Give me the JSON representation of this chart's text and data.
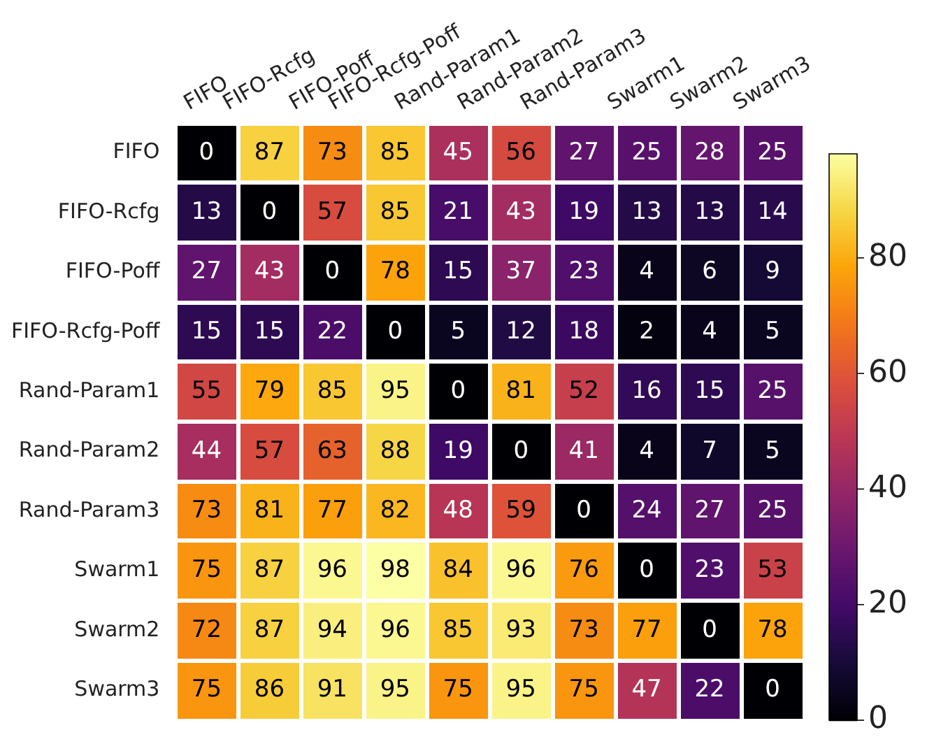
{
  "chart_data": {
    "type": "heatmap",
    "categories": [
      "FIFO",
      "FIFO-Rcfg",
      "FIFO-Poff",
      "FIFO-Rcfg-Poff",
      "Rand-Param1",
      "Rand-Param2",
      "Rand-Param3",
      "Swarm1",
      "Swarm2",
      "Swarm3"
    ],
    "y_categories": [
      "FIFO",
      "FIFO-Rcfg",
      "FIFO-Poff",
      "FIFO-Rcfg-Poff",
      "Rand-Param1",
      "Rand-Param2",
      "Rand-Param3",
      "Swarm1",
      "Swarm2",
      "Swarm3"
    ],
    "cells": [
      [
        0,
        87,
        73,
        85,
        45,
        56,
        27,
        25,
        28,
        25
      ],
      [
        13,
        0,
        57,
        85,
        21,
        43,
        19,
        13,
        13,
        14
      ],
      [
        27,
        43,
        0,
        78,
        15,
        37,
        23,
        4,
        6,
        9
      ],
      [
        15,
        15,
        22,
        0,
        5,
        12,
        18,
        2,
        4,
        5
      ],
      [
        55,
        79,
        85,
        95,
        0,
        81,
        52,
        16,
        15,
        25
      ],
      [
        44,
        57,
        63,
        88,
        19,
        0,
        41,
        4,
        7,
        5
      ],
      [
        73,
        81,
        77,
        82,
        48,
        59,
        0,
        24,
        27,
        25
      ],
      [
        75,
        87,
        96,
        98,
        84,
        96,
        76,
        0,
        23,
        53
      ],
      [
        72,
        87,
        94,
        96,
        85,
        93,
        73,
        77,
        0,
        78
      ],
      [
        75,
        86,
        91,
        95,
        75,
        95,
        75,
        47,
        22,
        0
      ]
    ],
    "clim": [
      0,
      98
    ],
    "cticks": [
      0,
      20,
      40,
      60,
      80
    ],
    "data_labels": true
  }
}
